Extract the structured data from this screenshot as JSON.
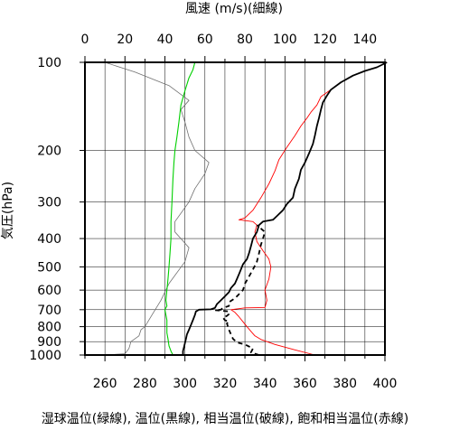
{
  "chart_data": {
    "type": "line",
    "top_axis_label": "風速 (m/s)(細線)",
    "left_axis_label": "気圧(hPa)",
    "bottom_axis_label": "湿球温位(緑線), 温位(黒線), 相当温位(破線), 飽和相当温位(赤線)",
    "y_scale": "log-pressure",
    "ylim": [
      1000,
      100
    ],
    "xlim_bottom": [
      250,
      400
    ],
    "xlim_top": [
      0,
      150
    ],
    "grid": true,
    "y_ticks": [
      100,
      200,
      300,
      400,
      500,
      600,
      700,
      800,
      900,
      1000
    ],
    "x_ticks_bottom": [
      260,
      280,
      300,
      320,
      340,
      360,
      380,
      400
    ],
    "x_ticks_top": [
      0,
      20,
      40,
      60,
      80,
      100,
      120,
      140
    ],
    "series": [
      {
        "key": "wind",
        "axis": "top",
        "color": "#707070",
        "width": 0.8,
        "dash": "",
        "points": [
          [
            10,
            1000
          ],
          [
            20,
            990
          ],
          [
            22,
            950
          ],
          [
            23,
            900
          ],
          [
            27,
            860
          ],
          [
            28,
            820
          ],
          [
            30,
            800
          ],
          [
            34,
            720
          ],
          [
            38,
            650
          ],
          [
            42,
            570
          ],
          [
            50,
            480
          ],
          [
            52,
            430
          ],
          [
            48,
            400
          ],
          [
            45,
            380
          ],
          [
            45,
            350
          ],
          [
            52,
            300
          ],
          [
            55,
            270
          ],
          [
            60,
            240
          ],
          [
            62,
            220
          ],
          [
            55,
            200
          ],
          [
            52,
            180
          ],
          [
            50,
            160
          ],
          [
            48,
            145
          ],
          [
            52,
            135
          ],
          [
            42,
            120
          ],
          [
            25,
            108
          ],
          [
            10,
            100
          ]
        ]
      },
      {
        "key": "wet_bulb_pt",
        "axis": "bottom",
        "color": "#00d000",
        "width": 1.1,
        "dash": "",
        "points": [
          [
            294,
            1000
          ],
          [
            293,
            970
          ],
          [
            292,
            930
          ],
          [
            291.5,
            880
          ],
          [
            291,
            840
          ],
          [
            291,
            800
          ],
          [
            291,
            760
          ],
          [
            290,
            700
          ],
          [
            291,
            680
          ],
          [
            290.5,
            650
          ],
          [
            291,
            600
          ],
          [
            291.5,
            550
          ],
          [
            292,
            500
          ],
          [
            292.5,
            450
          ],
          [
            293,
            400
          ],
          [
            293,
            350
          ],
          [
            293.5,
            300
          ],
          [
            294,
            250
          ],
          [
            294.5,
            220
          ],
          [
            295,
            200
          ],
          [
            296,
            180
          ],
          [
            297,
            160
          ],
          [
            298,
            140
          ],
          [
            300,
            125
          ],
          [
            302,
            113
          ],
          [
            304,
            106
          ],
          [
            305,
            100
          ]
        ]
      },
      {
        "key": "saturated_ept",
        "axis": "bottom",
        "color": "#ff0000",
        "width": 0.9,
        "dash": "",
        "points": [
          [
            365,
            1000
          ],
          [
            355,
            960
          ],
          [
            345,
            920
          ],
          [
            338,
            885
          ],
          [
            335,
            860
          ],
          [
            333,
            830
          ],
          [
            331,
            800
          ],
          [
            329,
            770
          ],
          [
            327,
            740
          ],
          [
            325,
            715
          ],
          [
            323,
            700
          ],
          [
            330,
            690
          ],
          [
            340,
            688
          ],
          [
            341,
            650
          ],
          [
            340,
            600
          ],
          [
            342,
            550
          ],
          [
            343,
            500
          ],
          [
            342,
            470
          ],
          [
            339,
            440
          ],
          [
            336,
            410
          ],
          [
            335,
            380
          ],
          [
            336,
            360
          ],
          [
            334,
            350
          ],
          [
            327,
            345
          ],
          [
            330,
            340
          ],
          [
            334,
            320
          ],
          [
            338,
            290
          ],
          [
            342,
            260
          ],
          [
            345,
            235
          ],
          [
            347,
            215
          ],
          [
            351,
            195
          ],
          [
            355,
            178
          ],
          [
            358,
            165
          ],
          [
            361,
            155
          ],
          [
            363,
            148
          ],
          [
            366,
            140
          ],
          [
            368,
            131
          ],
          [
            373,
            124
          ],
          [
            378,
            117
          ],
          [
            384,
            111
          ],
          [
            390,
            107
          ],
          [
            396,
            104
          ],
          [
            401,
            100
          ]
        ]
      },
      {
        "key": "equivalent_pt",
        "axis": "bottom",
        "color": "#000000",
        "width": 1.8,
        "dash": "5,4",
        "points": [
          [
            337,
            1000
          ],
          [
            333,
            980
          ],
          [
            334,
            950
          ],
          [
            330,
            920
          ],
          [
            326,
            905
          ],
          [
            324,
            880
          ],
          [
            323,
            850
          ],
          [
            322,
            820
          ],
          [
            321,
            780
          ],
          [
            322,
            770
          ],
          [
            320,
            760
          ],
          [
            319,
            745
          ],
          [
            321,
            735
          ],
          [
            322,
            725
          ],
          [
            322,
            710
          ],
          [
            318,
            705
          ],
          [
            315,
            703
          ],
          [
            318,
            700
          ],
          [
            319,
            690
          ],
          [
            322,
            680
          ],
          [
            322,
            660
          ],
          [
            325,
            640
          ],
          [
            327,
            620
          ],
          [
            329,
            600
          ],
          [
            330,
            570
          ],
          [
            332,
            540
          ],
          [
            334,
            510
          ],
          [
            336,
            480
          ],
          [
            337,
            450
          ],
          [
            338,
            420
          ],
          [
            339,
            400
          ],
          [
            340,
            380
          ],
          [
            336,
            360
          ]
        ]
      },
      {
        "key": "potential_temp",
        "axis": "bottom",
        "color": "#000000",
        "width": 1.8,
        "dash": "",
        "points": [
          [
            299,
            1000
          ],
          [
            299,
            970
          ],
          [
            299.5,
            940
          ],
          [
            300,
            910
          ],
          [
            300.5,
            880
          ],
          [
            301,
            850
          ],
          [
            302,
            820
          ],
          [
            303,
            790
          ],
          [
            304,
            760
          ],
          [
            305,
            730
          ],
          [
            305.5,
            710
          ],
          [
            307,
            700
          ],
          [
            313,
            698
          ],
          [
            315,
            690
          ],
          [
            316,
            670
          ],
          [
            318,
            650
          ],
          [
            320,
            630
          ],
          [
            322,
            610
          ],
          [
            323,
            590
          ],
          [
            325,
            570
          ],
          [
            326,
            550
          ],
          [
            327,
            530
          ],
          [
            328,
            510
          ],
          [
            329,
            490
          ],
          [
            331,
            470
          ],
          [
            332,
            450
          ],
          [
            333,
            425
          ],
          [
            334,
            400
          ],
          [
            336,
            380
          ],
          [
            337,
            360
          ],
          [
            339,
            350
          ],
          [
            344,
            345
          ],
          [
            346,
            335
          ],
          [
            349,
            320
          ],
          [
            351,
            305
          ],
          [
            354,
            290
          ],
          [
            355,
            270
          ],
          [
            357,
            250
          ],
          [
            358,
            233
          ],
          [
            360,
            220
          ],
          [
            362,
            205
          ],
          [
            364,
            190
          ],
          [
            365,
            178
          ],
          [
            366,
            165
          ],
          [
            367,
            155
          ],
          [
            368,
            145
          ],
          [
            369,
            137
          ],
          [
            371,
            130
          ],
          [
            373,
            124
          ],
          [
            378,
            117
          ],
          [
            384,
            111
          ],
          [
            390,
            107
          ],
          [
            396,
            104
          ],
          [
            401,
            100
          ]
        ]
      }
    ]
  }
}
